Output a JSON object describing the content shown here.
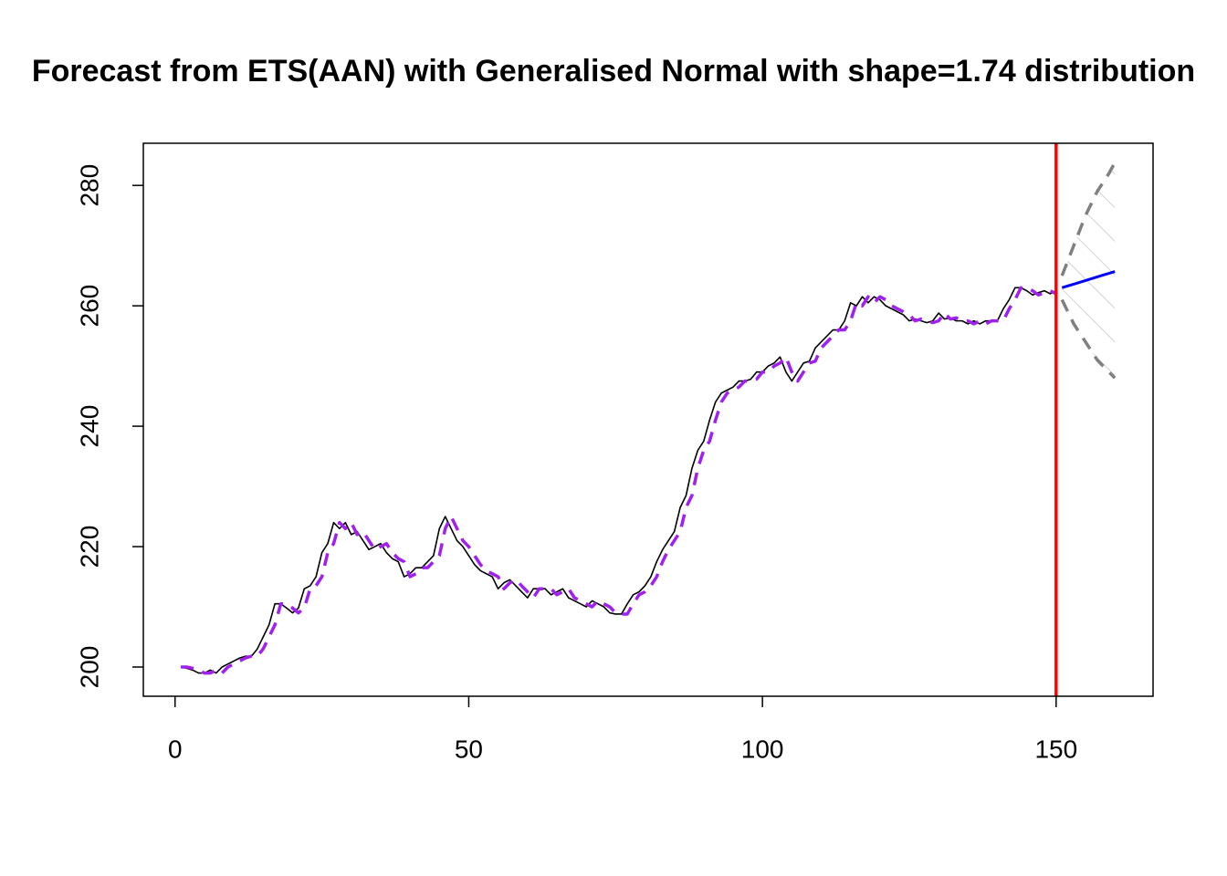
{
  "chart_data": {
    "type": "line",
    "title": "Forecast from ETS(AAN) with Generalised Normal with shape=1.74 distribution",
    "xlim": [
      -5.4,
      166.5
    ],
    "ylim": [
      195.15,
      287
    ],
    "xticks": [
      0,
      50,
      100,
      150
    ],
    "yticks": [
      200,
      220,
      240,
      260,
      280
    ],
    "vline": 150,
    "vline_color": "#ff0000",
    "series": [
      {
        "color": "#000000",
        "dash": false,
        "width": 1.6,
        "x": [
          1,
          2,
          3,
          4,
          5,
          6,
          7,
          8,
          9,
          10,
          11,
          12,
          13,
          14,
          15,
          16,
          17,
          18,
          19,
          20,
          21,
          22,
          23,
          24,
          25,
          26,
          27,
          28,
          29,
          30,
          31,
          32,
          33,
          34,
          35,
          36,
          37,
          38,
          39,
          40,
          41,
          42,
          43,
          44,
          45,
          46,
          47,
          48,
          49,
          50,
          51,
          52,
          53,
          54,
          55,
          56,
          57,
          58,
          59,
          60,
          61,
          62,
          63,
          64,
          65,
          66,
          67,
          68,
          69,
          70,
          71,
          72,
          73,
          74,
          75,
          76,
          77,
          78,
          79,
          80,
          81,
          82,
          83,
          84,
          85,
          86,
          87,
          88,
          89,
          90,
          91,
          92,
          93,
          94,
          95,
          96,
          97,
          98,
          99,
          100,
          101,
          102,
          103,
          104,
          105,
          106,
          107,
          108,
          109,
          110,
          111,
          112,
          113,
          114,
          115,
          116,
          117,
          118,
          119,
          120,
          121,
          122,
          123,
          124,
          125,
          126,
          127,
          128,
          129,
          130,
          131,
          132,
          133,
          134,
          135,
          136,
          137,
          138,
          139,
          140,
          141,
          142,
          143,
          144,
          145,
          146,
          147,
          148,
          149,
          150
        ],
        "values": [
          200,
          199.8,
          199.5,
          199,
          199,
          199.5,
          199,
          200,
          200.5,
          201,
          201.5,
          201.8,
          201.8,
          203,
          205,
          207,
          210.5,
          210.5,
          209.8,
          209,
          209.8,
          213,
          213.5,
          215,
          219,
          220.5,
          224,
          223,
          224,
          222,
          222.5,
          221,
          219.5,
          220,
          220.5,
          219,
          218,
          217.5,
          215,
          215.5,
          216.5,
          216.5,
          217.5,
          218.5,
          223,
          225,
          223,
          221,
          220,
          218.5,
          217,
          216,
          215.5,
          215,
          213,
          214,
          214.5,
          213.5,
          212.5,
          211.5,
          213,
          213,
          213,
          212,
          212.5,
          213,
          211.5,
          211,
          210.5,
          210,
          211,
          210.5,
          210,
          209,
          208.8,
          208.8,
          210.5,
          212,
          212.5,
          213.5,
          215,
          217.5,
          219.5,
          221,
          222.5,
          226.5,
          228.5,
          233,
          236,
          237.5,
          241,
          244,
          245.5,
          246,
          246.5,
          247.5,
          247.5,
          247.8,
          249,
          249,
          250,
          250.5,
          251.5,
          249,
          247.5,
          249,
          250.5,
          250.8,
          253,
          254,
          255,
          256,
          256,
          257.5,
          260.5,
          260,
          261.5,
          260.5,
          261.5,
          261,
          260,
          259.5,
          259,
          258.5,
          257.5,
          257.8,
          257.5,
          257.2,
          257.5,
          258.8,
          257.8,
          258,
          257.5,
          257.5,
          257,
          257.5,
          257,
          257.5,
          257.5,
          257.5,
          259.5,
          261,
          263,
          263,
          262.5,
          261.8,
          262.2,
          262.5,
          262,
          262.5
        ]
      },
      {
        "color": "#a020f0",
        "dash": true,
        "width": 3.5,
        "x": [
          1,
          2,
          3,
          4,
          5,
          6,
          7,
          8,
          9,
          10,
          11,
          12,
          13,
          14,
          15,
          16,
          17,
          18,
          19,
          20,
          21,
          22,
          23,
          24,
          25,
          26,
          27,
          28,
          29,
          30,
          31,
          32,
          33,
          34,
          35,
          36,
          37,
          38,
          39,
          40,
          41,
          42,
          43,
          44,
          45,
          46,
          47,
          48,
          49,
          50,
          51,
          52,
          53,
          54,
          55,
          56,
          57,
          58,
          59,
          60,
          61,
          62,
          63,
          64,
          65,
          66,
          67,
          68,
          69,
          70,
          71,
          72,
          73,
          74,
          75,
          76,
          77,
          78,
          79,
          80,
          81,
          82,
          83,
          84,
          85,
          86,
          87,
          88,
          89,
          90,
          91,
          92,
          93,
          94,
          95,
          96,
          97,
          98,
          99,
          100,
          101,
          102,
          103,
          104,
          105,
          106,
          107,
          108,
          109,
          110,
          111,
          112,
          113,
          114,
          115,
          116,
          117,
          118,
          119,
          120,
          121,
          122,
          123,
          124,
          125,
          126,
          127,
          128,
          129,
          130,
          131,
          132,
          133,
          134,
          135,
          136,
          137,
          138,
          139,
          140,
          141,
          142,
          143,
          144,
          145,
          146,
          147,
          148,
          149,
          150
        ],
        "values": [
          200,
          200,
          199.8,
          199.5,
          199,
          199,
          199.5,
          199,
          200,
          200.5,
          201,
          201.5,
          201.8,
          201.8,
          203,
          205,
          207,
          210.5,
          210.5,
          209.8,
          209,
          209.8,
          213,
          213.5,
          215,
          219,
          220.5,
          224,
          223,
          224,
          222,
          222.5,
          221,
          219.5,
          220,
          220.5,
          219,
          218,
          217.5,
          215,
          215.5,
          216.5,
          216.5,
          217.5,
          218.5,
          223,
          225,
          223,
          221,
          220,
          218.5,
          217,
          216,
          215.5,
          215,
          213,
          214,
          214.5,
          213.5,
          212.5,
          211.5,
          213,
          213,
          213,
          212,
          212.5,
          213,
          211.5,
          211,
          210.5,
          210,
          211,
          210.5,
          210,
          209,
          208.8,
          208.8,
          210.5,
          212,
          212.5,
          213.5,
          215,
          217.5,
          219.5,
          221,
          222.5,
          226.5,
          228.5,
          233,
          236,
          237.5,
          241,
          244,
          245.5,
          246,
          246.5,
          247.5,
          247.5,
          247.8,
          249,
          249,
          250,
          250.5,
          251.5,
          249,
          247.5,
          249,
          250.5,
          250.8,
          253,
          254,
          255,
          256,
          256,
          257.5,
          260.5,
          260,
          261.5,
          260.5,
          261.5,
          261,
          260,
          259.5,
          259,
          258.5,
          257.5,
          257.8,
          257.5,
          257.2,
          257.5,
          258.8,
          257.8,
          258,
          257.5,
          257.5,
          257,
          257.5,
          257,
          257.5,
          257.5,
          257.5,
          259.5,
          261,
          263,
          263,
          262.5,
          261.8,
          262.2,
          262.5,
          262
        ]
      },
      {
        "color": "#0000ff",
        "dash": false,
        "width": 3,
        "x": [
          151,
          152,
          153,
          154,
          155,
          156,
          157,
          158,
          159,
          160
        ],
        "values": [
          263,
          263.3,
          263.6,
          263.9,
          264.2,
          264.5,
          264.8,
          265.1,
          265.4,
          265.7
        ]
      },
      {
        "color": "#808080",
        "dash": true,
        "width": 3.5,
        "band": "upper",
        "x": [
          151,
          152,
          153,
          154,
          155,
          156,
          157,
          158,
          159,
          160
        ],
        "values": [
          265,
          267.5,
          270,
          272.5,
          275,
          277,
          279,
          280.5,
          282,
          283.8
        ]
      },
      {
        "color": "#808080",
        "dash": true,
        "width": 3.5,
        "band": "lower",
        "x": [
          151,
          152,
          153,
          154,
          155,
          156,
          157,
          158,
          159,
          160
        ],
        "values": [
          261,
          259,
          257,
          255.5,
          254,
          252.5,
          251,
          250,
          249,
          248
        ]
      }
    ]
  }
}
